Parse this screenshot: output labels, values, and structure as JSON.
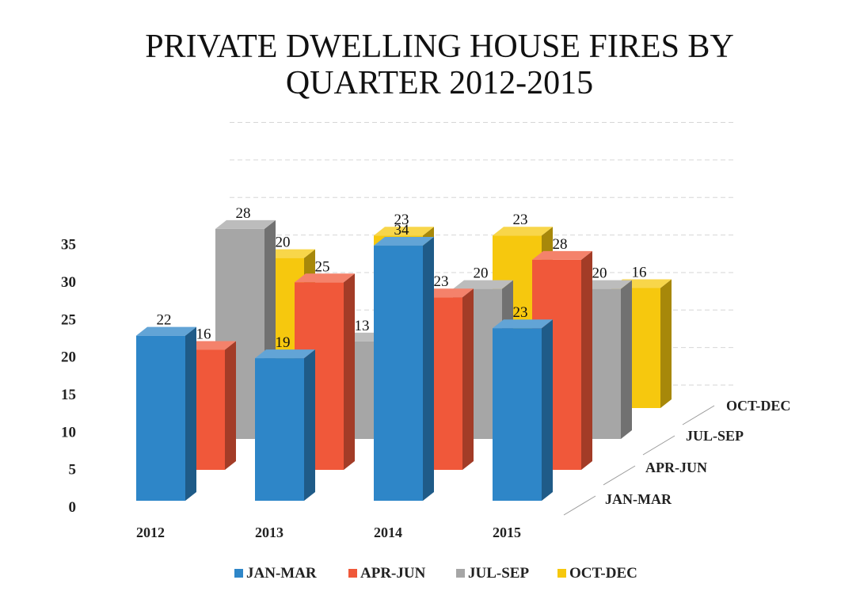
{
  "chart_data": {
    "type": "bar",
    "title_lines": [
      "PRIVATE DWELLING HOUSE FIRES BY",
      "QUARTER 2012-2015"
    ],
    "categories": [
      "2012",
      "2013",
      "2014",
      "2015"
    ],
    "series": [
      {
        "name": "JAN-MAR",
        "values": [
          22,
          19,
          34,
          23
        ],
        "color": "#2e86c8"
      },
      {
        "name": "APR-JUN",
        "values": [
          16,
          25,
          23,
          28
        ],
        "color": "#f0583a"
      },
      {
        "name": "JUL-SEP",
        "values": [
          28,
          13,
          20,
          20
        ],
        "color": "#a6a6a6"
      },
      {
        "name": "OCT-DEC",
        "values": [
          20,
          23,
          23,
          16
        ],
        "color": "#f6c80e"
      }
    ],
    "depth_labels": [
      "JAN-MAR",
      "APR-JUN",
      "JUL-SEP",
      "OCT-DEC"
    ],
    "yticks": [
      0,
      5,
      10,
      15,
      20,
      25,
      30,
      35
    ],
    "ylim": [
      0,
      35
    ],
    "legend_position": "bottom",
    "grid": true,
    "style": "3d-column"
  }
}
